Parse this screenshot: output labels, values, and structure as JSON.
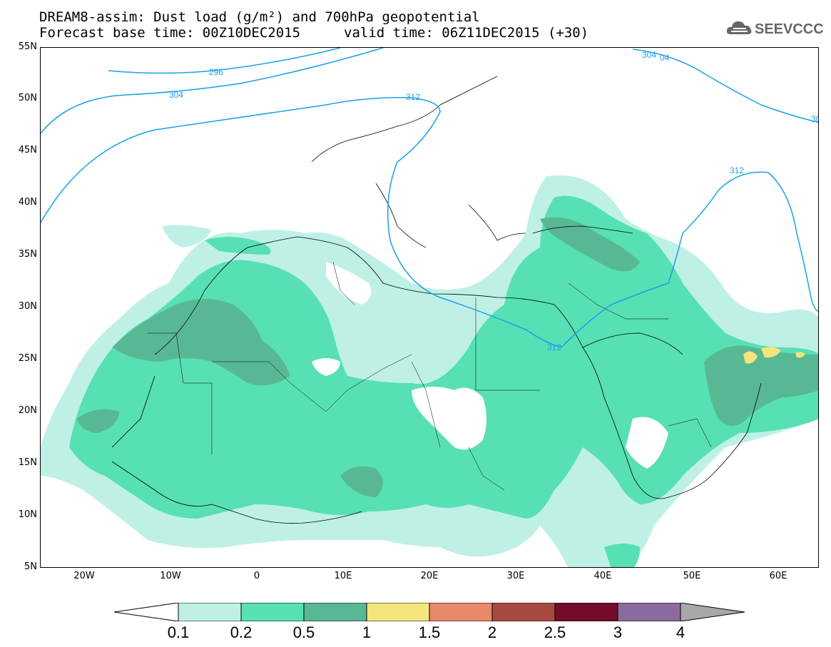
{
  "title": {
    "line1": "DREAM8-assim: Dust load (g/m²) and 700hPa geopotential",
    "line2a": "Forecast base time: 00Z10DEC2015",
    "line2b": "valid time: 06Z11DEC2015 (+30)"
  },
  "logo": {
    "text": "SEEVCCC",
    "icon": "cloud-logo-icon"
  },
  "axes": {
    "lat_labels": [
      "55N",
      "50N",
      "45N",
      "40N",
      "35N",
      "30N",
      "25N",
      "20N",
      "15N",
      "10N",
      "5N"
    ],
    "lon_labels": [
      "20W",
      "10W",
      "0",
      "10E",
      "20E",
      "30E",
      "40E",
      "50E",
      "60E"
    ]
  },
  "contours": {
    "labels": [
      "296",
      "304",
      "312",
      "312",
      "312",
      "304",
      "04",
      "30"
    ],
    "color": "#1aa0e6"
  },
  "colorbar": {
    "levels": [
      "0.1",
      "0.2",
      "0.5",
      "1",
      "1.5",
      "2",
      "2.5",
      "3",
      "4"
    ],
    "colors": [
      "#ffffff",
      "#bff0e6",
      "#57e0b3",
      "#59b894",
      "#f4e57c",
      "#e8896a",
      "#a84a42",
      "#730d2a",
      "#8b6b9d",
      "#a8a8a8"
    ]
  }
}
